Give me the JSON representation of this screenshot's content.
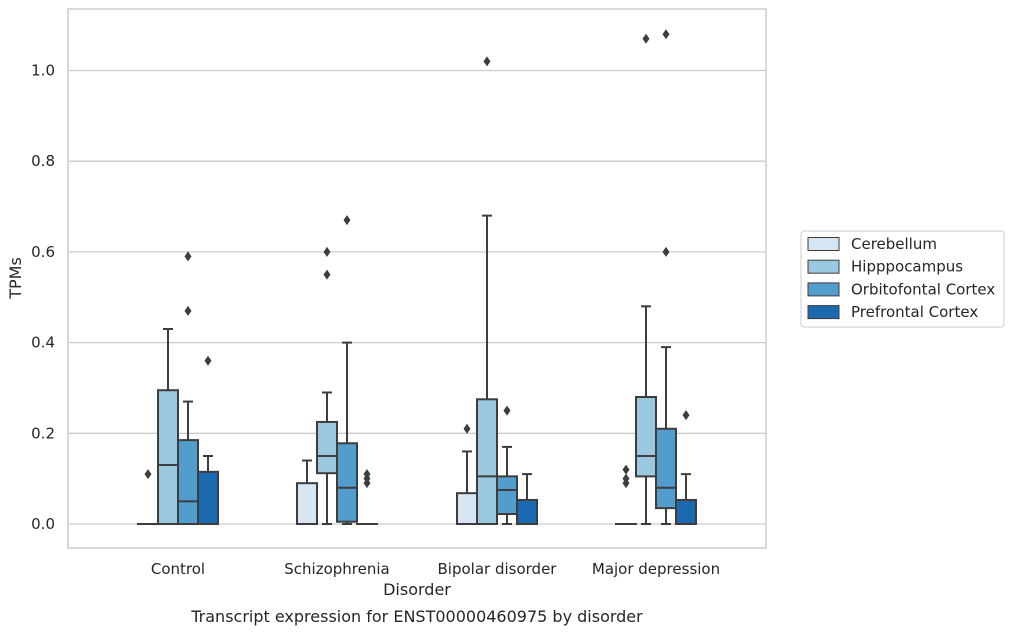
{
  "chart_data": {
    "type": "box",
    "title": "",
    "caption": "Transcript expression for ENST00000460975 by disorder",
    "xlabel": "Disorder",
    "ylabel": "TPMs",
    "ylim": [
      -0.05,
      1.135
    ],
    "yticks": [
      0.0,
      0.2,
      0.4,
      0.6,
      0.8,
      1.0
    ],
    "ytick_labels": [
      "0.0",
      "0.2",
      "0.4",
      "0.6",
      "0.8",
      "1.0"
    ],
    "grid": "horizontal",
    "legend_position": "right",
    "categories": [
      "Control",
      "Schizophrenia",
      "Bipolar disorder",
      "Major depression"
    ],
    "series": [
      {
        "name": "Cerebellum",
        "color": "#d6e6f4",
        "boxes": [
          {
            "q1": 0.0,
            "median": 0.0,
            "q3": 0.0,
            "whisker_low": 0.0,
            "whisker_high": 0.0,
            "outliers": [
              0.11
            ]
          },
          {
            "q1": 0.0,
            "median": 0.0,
            "q3": 0.09,
            "whisker_low": 0.0,
            "whisker_high": 0.14,
            "outliers": []
          },
          {
            "q1": 0.0,
            "median": 0.0,
            "q3": 0.068,
            "whisker_low": 0.0,
            "whisker_high": 0.16,
            "outliers": [
              0.21
            ]
          },
          {
            "q1": 0.0,
            "median": 0.0,
            "q3": 0.0,
            "whisker_low": 0.0,
            "whisker_high": 0.0,
            "outliers": [
              0.09,
              0.1,
              0.12
            ]
          }
        ]
      },
      {
        "name": "Hipppocampus",
        "color": "#9ac8e0",
        "boxes": [
          {
            "q1": 0.0,
            "median": 0.13,
            "q3": 0.295,
            "whisker_low": 0.0,
            "whisker_high": 0.43,
            "outliers": []
          },
          {
            "q1": 0.112,
            "median": 0.15,
            "q3": 0.225,
            "whisker_low": 0.0,
            "whisker_high": 0.29,
            "outliers": [
              0.55,
              0.6
            ]
          },
          {
            "q1": 0.0,
            "median": 0.105,
            "q3": 0.275,
            "whisker_low": 0.0,
            "whisker_high": 0.68,
            "outliers": [
              1.02
            ]
          },
          {
            "q1": 0.105,
            "median": 0.15,
            "q3": 0.28,
            "whisker_low": 0.0,
            "whisker_high": 0.48,
            "outliers": [
              1.07
            ]
          }
        ]
      },
      {
        "name": "Orbitofontal Cortex",
        "color": "#529dcc",
        "boxes": [
          {
            "q1": 0.0,
            "median": 0.05,
            "q3": 0.185,
            "whisker_low": 0.0,
            "whisker_high": 0.27,
            "outliers": [
              0.47,
              0.59
            ]
          },
          {
            "q1": 0.005,
            "median": 0.08,
            "q3": 0.178,
            "whisker_low": 0.0,
            "whisker_high": 0.4,
            "outliers": [
              0.67
            ]
          },
          {
            "q1": 0.022,
            "median": 0.075,
            "q3": 0.105,
            "whisker_low": 0.0,
            "whisker_high": 0.17,
            "outliers": [
              0.25
            ]
          },
          {
            "q1": 0.035,
            "median": 0.08,
            "q3": 0.21,
            "whisker_low": 0.0,
            "whisker_high": 0.39,
            "outliers": [
              0.6,
              1.08
            ]
          }
        ]
      },
      {
        "name": "Prefrontal Cortex",
        "color": "#1b69af",
        "boxes": [
          {
            "q1": 0.0,
            "median": 0.0,
            "q3": 0.115,
            "whisker_low": 0.0,
            "whisker_high": 0.15,
            "outliers": [
              0.36
            ]
          },
          {
            "q1": 0.0,
            "median": 0.0,
            "q3": 0.0,
            "whisker_low": 0.0,
            "whisker_high": 0.0,
            "outliers": [
              0.09,
              0.1,
              0.11
            ]
          },
          {
            "q1": 0.0,
            "median": 0.0,
            "q3": 0.053,
            "whisker_low": 0.0,
            "whisker_high": 0.11,
            "outliers": []
          },
          {
            "q1": 0.0,
            "median": 0.0,
            "q3": 0.053,
            "whisker_low": 0.0,
            "whisker_high": 0.11,
            "outliers": [
              0.24
            ]
          }
        ]
      }
    ]
  }
}
